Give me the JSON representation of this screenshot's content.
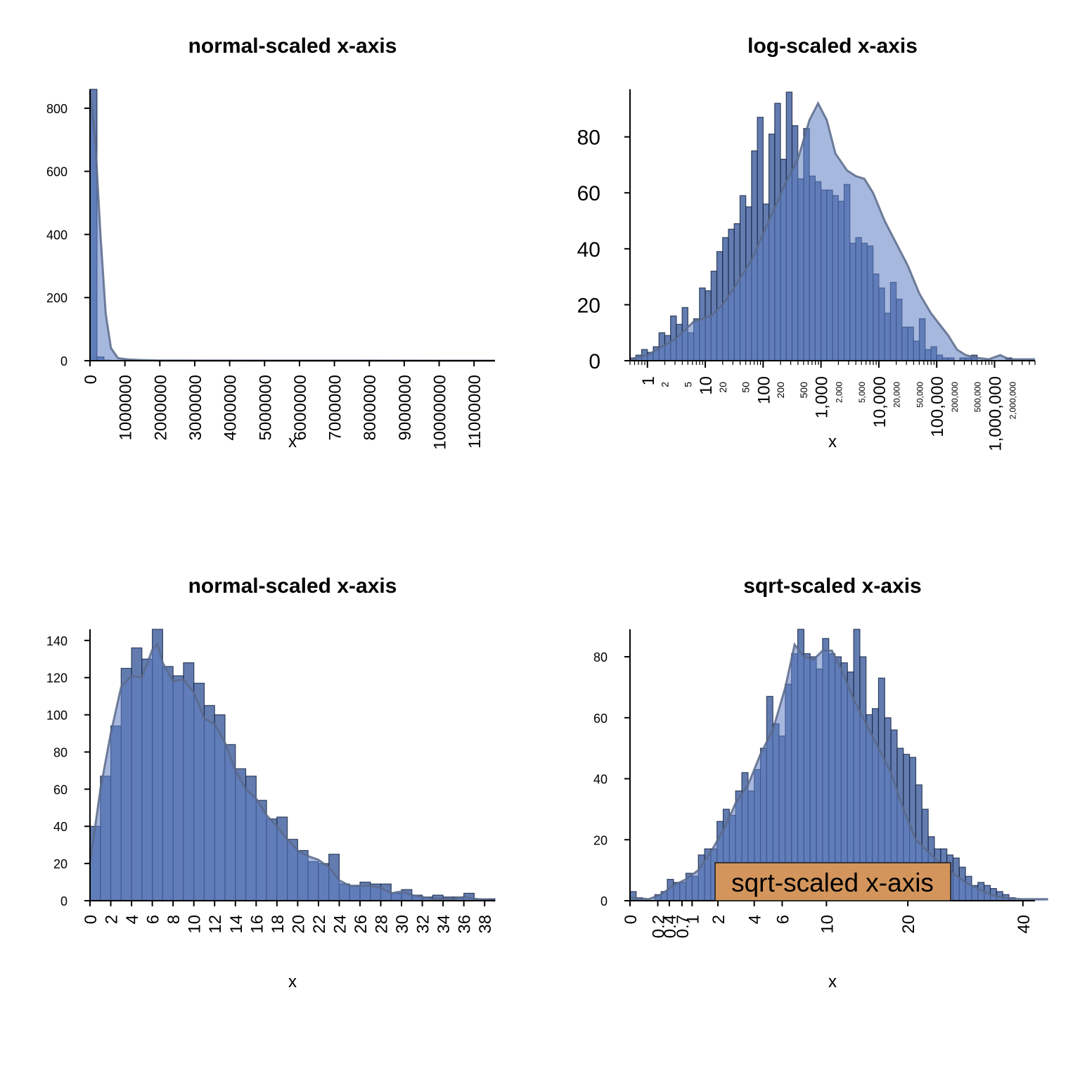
{
  "colors": {
    "bar_fill": "#274a91",
    "bar_fill_opacity": 0.72,
    "bar_stroke": "#1a2a4a",
    "density_fill": "#5e7ec2",
    "density_stroke": "#5a6a8a",
    "annotation_fill": "#d3955c"
  },
  "chart_data": [
    {
      "id": "tl",
      "type": "bar",
      "title": "normal-scaled x-axis",
      "xlabel": "x",
      "x_scale": "linear",
      "xlim": [
        0,
        11600000
      ],
      "ylim": [
        0,
        860
      ],
      "x_ticks": [
        0,
        1000000,
        2000000,
        3000000,
        4000000,
        5000000,
        6000000,
        7000000,
        8000000,
        9000000,
        10000000,
        11000000
      ],
      "x_tick_labels": [
        "0",
        "1000000",
        "2000000",
        "3000000",
        "4000000",
        "5000000",
        "6000000",
        "7000000",
        "8000000",
        "9000000",
        "10000000",
        "11000000"
      ],
      "y_ticks": [
        0,
        200,
        400,
        600,
        800
      ],
      "y_tick_labels": [
        "0",
        "200",
        "400",
        "600",
        "800"
      ],
      "bin_width": 200000,
      "bin_start": 0,
      "values": [
        975,
        12,
        2,
        1,
        1,
        1,
        0,
        0,
        0,
        0,
        0,
        0,
        0,
        0,
        0,
        0,
        0,
        0,
        0,
        0,
        0,
        0,
        0,
        0,
        0,
        0,
        0,
        0,
        0,
        0,
        0,
        0,
        0,
        0,
        0,
        0,
        0,
        0,
        0,
        0,
        0,
        0,
        0,
        0,
        0,
        0,
        0,
        0,
        0,
        0,
        0,
        0,
        0,
        0,
        0,
        1
      ],
      "density": [
        [
          0,
          850
        ],
        [
          150000,
          700
        ],
        [
          300000,
          400
        ],
        [
          450000,
          150
        ],
        [
          600000,
          40
        ],
        [
          800000,
          8
        ],
        [
          1100000,
          4
        ],
        [
          1500000,
          2
        ],
        [
          2000000,
          0.5
        ],
        [
          11600000,
          0
        ]
      ]
    },
    {
      "id": "tr",
      "type": "bar",
      "title": "log-scaled x-axis",
      "xlabel": "x",
      "x_scale": "log10",
      "xlim": [
        0.5,
        5000000
      ],
      "ylim": [
        0,
        97
      ],
      "x_major_ticks": [
        1,
        10,
        100,
        1000,
        10000,
        100000,
        1000000
      ],
      "x_major_labels": [
        "1",
        "10",
        "100",
        "1,000",
        "10,000",
        "100,000",
        "1,000,000"
      ],
      "x_minor_ticks": [
        2,
        5,
        20,
        50,
        200,
        500,
        2000,
        5000,
        20000,
        50000,
        200000,
        500000,
        2000000
      ],
      "x_minor_labels": [
        "2",
        "5",
        "20",
        "50",
        "200",
        "500",
        "2,000",
        "5,000",
        "20,000",
        "50,000",
        "200,000",
        "500,000",
        "2,000,000"
      ],
      "y_ticks": [
        0,
        20,
        40,
        60,
        80
      ],
      "y_tick_labels": [
        "0",
        "20",
        "40",
        "60",
        "80"
      ],
      "bin_log_width": 0.1,
      "bin_log_start": -0.3,
      "values": [
        1,
        2,
        4,
        3,
        5,
        10,
        9,
        16,
        13,
        19,
        10,
        15,
        26,
        25,
        32,
        39,
        44,
        47,
        49,
        59,
        55,
        75,
        87,
        56,
        81,
        92,
        72,
        96,
        84,
        65,
        83,
        66,
        64,
        61,
        61,
        59,
        57,
        63,
        42,
        44,
        42,
        41,
        31,
        26,
        17,
        28,
        22,
        12,
        12,
        7,
        15,
        4,
        5,
        2,
        1,
        1,
        0,
        1,
        1,
        2,
        0,
        0,
        0,
        0,
        0,
        1
      ],
      "density": [
        [
          -0.3,
          0.5
        ],
        [
          0,
          2
        ],
        [
          0.5,
          8
        ],
        [
          0.8,
          14
        ],
        [
          1.1,
          16
        ],
        [
          1.3,
          20
        ],
        [
          1.5,
          26
        ],
        [
          1.8,
          36
        ],
        [
          2.1,
          50
        ],
        [
          2.4,
          64
        ],
        [
          2.6,
          72
        ],
        [
          2.8,
          86
        ],
        [
          2.95,
          92
        ],
        [
          3.1,
          86
        ],
        [
          3.25,
          74
        ],
        [
          3.45,
          68
        ],
        [
          3.6,
          66
        ],
        [
          3.75,
          65
        ],
        [
          3.9,
          60
        ],
        [
          4.1,
          50
        ],
        [
          4.3,
          42
        ],
        [
          4.5,
          34
        ],
        [
          4.7,
          24
        ],
        [
          4.9,
          17
        ],
        [
          5.05,
          13
        ],
        [
          5.2,
          9
        ],
        [
          5.35,
          4
        ],
        [
          5.5,
          2
        ],
        [
          5.7,
          1
        ],
        [
          5.9,
          0.5
        ],
        [
          6.1,
          2
        ],
        [
          6.25,
          0.5
        ],
        [
          6.45,
          0.5
        ],
        [
          6.7,
          0.5
        ]
      ]
    },
    {
      "id": "bl",
      "type": "bar",
      "title": "normal-scaled x-axis",
      "xlabel": "x",
      "x_scale": "linear",
      "xlim": [
        0,
        39
      ],
      "ylim": [
        0,
        146
      ],
      "x_ticks": [
        0,
        2,
        4,
        6,
        8,
        10,
        12,
        14,
        16,
        18,
        20,
        22,
        24,
        26,
        28,
        30,
        32,
        34,
        36,
        38
      ],
      "x_tick_labels": [
        "0",
        "2",
        "4",
        "6",
        "8",
        "10",
        "12",
        "14",
        "16",
        "18",
        "20",
        "22",
        "24",
        "26",
        "28",
        "30",
        "32",
        "34",
        "36",
        "38"
      ],
      "y_ticks": [
        0,
        20,
        40,
        60,
        80,
        100,
        120,
        140
      ],
      "y_tick_labels": [
        "0",
        "20",
        "40",
        "60",
        "80",
        "100",
        "120",
        "140"
      ],
      "bin_width": 1,
      "bin_start": 0,
      "values": [
        40,
        67,
        94,
        125,
        136,
        130,
        146,
        126,
        121,
        128,
        117,
        105,
        100,
        84,
        71,
        67,
        54,
        44,
        45,
        33,
        27,
        21,
        20,
        25,
        9,
        8,
        10,
        9,
        9,
        4,
        6,
        3,
        2,
        3,
        2,
        2,
        4,
        1,
        1
      ],
      "density": [
        [
          0,
          20
        ],
        [
          1,
          60
        ],
        [
          2,
          90
        ],
        [
          3,
          115
        ],
        [
          4,
          121
        ],
        [
          5,
          120
        ],
        [
          6,
          135
        ],
        [
          6.5,
          138
        ],
        [
          7,
          128
        ],
        [
          8,
          118
        ],
        [
          9,
          119
        ],
        [
          10,
          112
        ],
        [
          11,
          98
        ],
        [
          12,
          95
        ],
        [
          13,
          85
        ],
        [
          14,
          70
        ],
        [
          15,
          60
        ],
        [
          16,
          55
        ],
        [
          17,
          46
        ],
        [
          18,
          40
        ],
        [
          19,
          33
        ],
        [
          20,
          27
        ],
        [
          21,
          24
        ],
        [
          22,
          22
        ],
        [
          23,
          18
        ],
        [
          24,
          11
        ],
        [
          25,
          8
        ],
        [
          26,
          8
        ],
        [
          27,
          8
        ],
        [
          28,
          7
        ],
        [
          29,
          4
        ],
        [
          30,
          5
        ],
        [
          31,
          3
        ],
        [
          32,
          2
        ],
        [
          33,
          1
        ],
        [
          34,
          1
        ],
        [
          35,
          1
        ],
        [
          36,
          2
        ],
        [
          37,
          1
        ],
        [
          38,
          0.5
        ],
        [
          39,
          0
        ]
      ]
    },
    {
      "id": "br",
      "type": "bar",
      "title": "sqrt-scaled x-axis",
      "xlabel": "x",
      "x_scale": "sqrt",
      "xlim": [
        0,
        42.5
      ],
      "ylim": [
        0,
        89
      ],
      "x_ticks": [
        0,
        0.2,
        0.4,
        0.7,
        1,
        2,
        4,
        6,
        10,
        20,
        40
      ],
      "x_tick_labels": [
        "0",
        "0.2",
        "0.4",
        "0.7",
        "1",
        "2",
        "4",
        "6",
        "10",
        "20",
        "40"
      ],
      "y_ticks": [
        0,
        20,
        40,
        60,
        80
      ],
      "y_tick_labels": [
        "0",
        "20",
        "40",
        "60",
        "80"
      ],
      "bin_sqrt_width": 0.1,
      "bin_sqrt_start": 0,
      "values": [
        3,
        1,
        0,
        0,
        2,
        3,
        7,
        6,
        6,
        9,
        8,
        15,
        17,
        17,
        26,
        30,
        28,
        36,
        42,
        36,
        43,
        50,
        67,
        58,
        54,
        71,
        81,
        89,
        81,
        80,
        76,
        86,
        81,
        80,
        78,
        75,
        89,
        80,
        61,
        63,
        73,
        60,
        56,
        50,
        48,
        47,
        38,
        30,
        21,
        17,
        17,
        15,
        14,
        11,
        8,
        5,
        6,
        5,
        4,
        3,
        2,
        1,
        0,
        0,
        0,
        0,
        0,
        0,
        0,
        0,
        0,
        0,
        0,
        0,
        1
      ],
      "density": [
        [
          0,
          1
        ],
        [
          0.3,
          0.5
        ],
        [
          0.5,
          2
        ],
        [
          0.7,
          5
        ],
        [
          0.9,
          7
        ],
        [
          1.1,
          10
        ],
        [
          1.3,
          16
        ],
        [
          1.5,
          23
        ],
        [
          1.7,
          32
        ],
        [
          1.9,
          38
        ],
        [
          2.1,
          48
        ],
        [
          2.3,
          56
        ],
        [
          2.5,
          70
        ],
        [
          2.65,
          84
        ],
        [
          2.8,
          80
        ],
        [
          2.95,
          79
        ],
        [
          3.1,
          82
        ],
        [
          3.25,
          82
        ],
        [
          3.4,
          76
        ],
        [
          3.6,
          66
        ],
        [
          3.8,
          58
        ],
        [
          4.0,
          50
        ],
        [
          4.2,
          42
        ],
        [
          4.4,
          30
        ],
        [
          4.6,
          20
        ],
        [
          4.8,
          16
        ],
        [
          5.0,
          12
        ],
        [
          5.2,
          9
        ],
        [
          5.4,
          6
        ],
        [
          5.6,
          4
        ],
        [
          5.8,
          2
        ],
        [
          6.0,
          1
        ],
        [
          6.3,
          0.5
        ],
        [
          6.6,
          0.5
        ],
        [
          6.73,
          0.5
        ]
      ],
      "annotation": "sqrt-scaled x-axis"
    }
  ]
}
